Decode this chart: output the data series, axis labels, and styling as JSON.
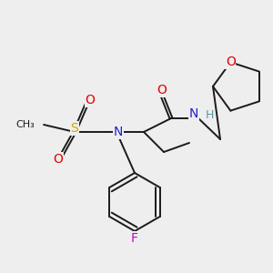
{
  "bg_color": "#eeeeee",
  "bond_color": "#1a1a1a",
  "colors": {
    "C": "#1a1a1a",
    "N": "#2020d0",
    "O": "#e00000",
    "S": "#ccaa00",
    "F": "#cc00cc",
    "H": "#5599aa"
  },
  "fig_size": [
    3.0,
    3.0
  ],
  "dpi": 100
}
